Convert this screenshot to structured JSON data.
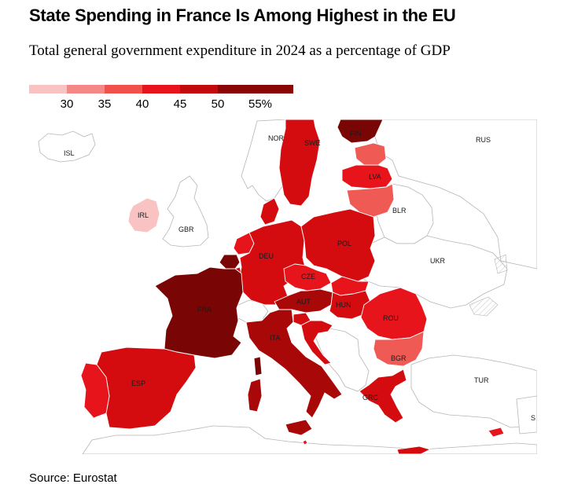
{
  "title": "State Spending in France Is Among Highest in the EU",
  "subtitle": "Total general government expenditure in 2024 as a percentage of GDP",
  "source": "Source: Eurostat",
  "legend": {
    "labels": [
      "30",
      "35",
      "40",
      "45",
      "50",
      "55%"
    ],
    "colors": [
      "#f9c2c3",
      "#f58886",
      "#f2504b",
      "#e8141b",
      "#c20a0d",
      "#8a0606"
    ]
  },
  "map": {
    "colors": {
      "non_eu": "#ffffff",
      "border": "#b5b5b5",
      "eu_border": "#ffffff",
      "coast": "#9a9a9a",
      "hatch": "#cccccc"
    },
    "countries": [
      {
        "code": "ISL",
        "label": "ISL",
        "eu": false
      },
      {
        "code": "NOR",
        "label": "NOR",
        "eu": false
      },
      {
        "code": "SWE",
        "label": "SWE",
        "eu": true,
        "bin": "45-50"
      },
      {
        "code": "FIN",
        "label": "FIN",
        "eu": true,
        "bin": ">55"
      },
      {
        "code": "RUS",
        "label": "RUS",
        "eu": false
      },
      {
        "code": "EST",
        "label": "",
        "eu": true,
        "bin": "35-40"
      },
      {
        "code": "LVA",
        "label": "LVA",
        "eu": true,
        "bin": "40-45"
      },
      {
        "code": "LTU",
        "label": "",
        "eu": true,
        "bin": "35-40"
      },
      {
        "code": "BLR",
        "label": "BLR",
        "eu": false
      },
      {
        "code": "IRL",
        "label": "IRL",
        "eu": true,
        "bin": "<30"
      },
      {
        "code": "GBR",
        "label": "GBR",
        "eu": false
      },
      {
        "code": "DNK",
        "label": "",
        "eu": true,
        "bin": "45-50"
      },
      {
        "code": "NLD",
        "label": "",
        "eu": true,
        "bin": "40-45"
      },
      {
        "code": "BEL",
        "label": "",
        "eu": true,
        "bin": ">55"
      },
      {
        "code": "DEU",
        "label": "DEU",
        "eu": true,
        "bin": "45-50"
      },
      {
        "code": "POL",
        "label": "POL",
        "eu": true,
        "bin": "45-50"
      },
      {
        "code": "UKR",
        "label": "UKR",
        "eu": false
      },
      {
        "code": "CZE",
        "label": "CZE",
        "eu": true,
        "bin": "40-45"
      },
      {
        "code": "SVK",
        "label": "",
        "eu": true,
        "bin": "40-45"
      },
      {
        "code": "AUT",
        "label": "AUT",
        "eu": true,
        "bin": "50-55"
      },
      {
        "code": "HUN",
        "label": "HUN",
        "eu": true,
        "bin": "45-50"
      },
      {
        "code": "FRA",
        "label": "FRA",
        "eu": true,
        "bin": ">55"
      },
      {
        "code": "CHE",
        "label": "",
        "eu": false
      },
      {
        "code": "ITA",
        "label": "ITA",
        "eu": true,
        "bin": "50-55"
      },
      {
        "code": "SVN",
        "label": "",
        "eu": true,
        "bin": "45-50"
      },
      {
        "code": "HRV",
        "label": "",
        "eu": true,
        "bin": "45-50"
      },
      {
        "code": "ROU",
        "label": "ROU",
        "eu": true,
        "bin": "40-45"
      },
      {
        "code": "BGR",
        "label": "BGR",
        "eu": true,
        "bin": "35-40"
      },
      {
        "code": "ESP",
        "label": "ESP",
        "eu": true,
        "bin": "45-50"
      },
      {
        "code": "PRT",
        "label": "",
        "eu": true,
        "bin": "40-45"
      },
      {
        "code": "GRC",
        "label": "GRC",
        "eu": true,
        "bin": "45-50"
      },
      {
        "code": "TUR",
        "label": "TUR",
        "eu": false
      },
      {
        "code": "CYP",
        "label": "",
        "eu": true,
        "bin": "40-45"
      },
      {
        "code": "MLT",
        "label": "",
        "eu": true,
        "bin": "40-45"
      },
      {
        "code": "LUX",
        "label": "",
        "eu": true,
        "bin": "45-50"
      },
      {
        "code": "SYR",
        "label": "S",
        "eu": false
      }
    ]
  }
}
